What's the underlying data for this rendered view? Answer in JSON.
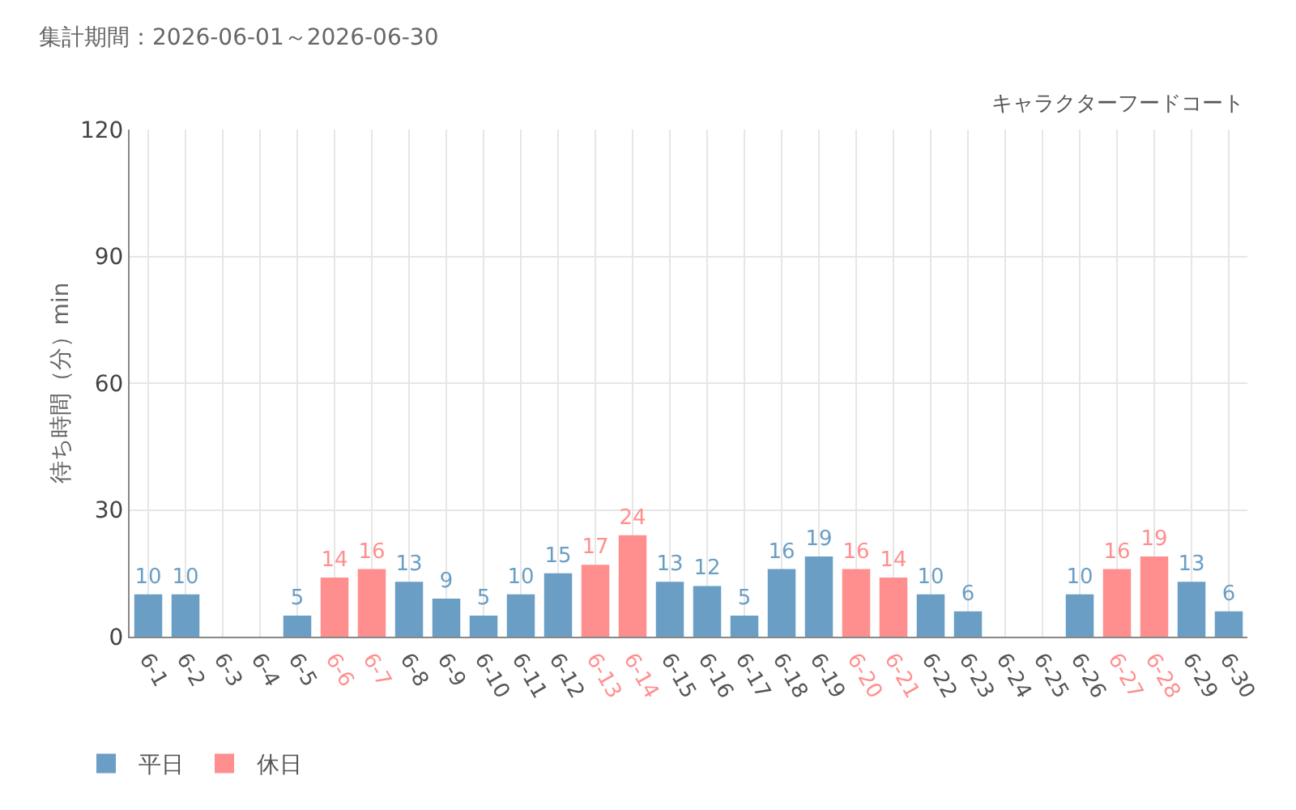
{
  "chart_data": {
    "type": "bar",
    "title": "集計期間：2026-06-01～2026-06-30",
    "subtitle": "キャラクターフードコート",
    "ylabel": "待ち時間（分）min",
    "categories": [
      "6-1",
      "6-2",
      "6-3",
      "6-4",
      "6-5",
      "6-6",
      "6-7",
      "6-8",
      "6-9",
      "6-10",
      "6-11",
      "6-12",
      "6-13",
      "6-14",
      "6-15",
      "6-16",
      "6-17",
      "6-18",
      "6-19",
      "6-20",
      "6-21",
      "6-22",
      "6-23",
      "6-24",
      "6-25",
      "6-26",
      "6-27",
      "6-28",
      "6-29",
      "6-30"
    ],
    "series": [
      {
        "name": "平日",
        "color": "#6a9ec5",
        "values": [
          10,
          10,
          null,
          null,
          5,
          null,
          null,
          13,
          9,
          5,
          10,
          15,
          null,
          null,
          13,
          12,
          5,
          16,
          19,
          null,
          null,
          10,
          6,
          null,
          null,
          10,
          null,
          null,
          13,
          6
        ]
      },
      {
        "name": "休日",
        "color": "#ff8f8f",
        "values": [
          null,
          null,
          null,
          null,
          null,
          14,
          16,
          null,
          null,
          null,
          null,
          null,
          17,
          24,
          null,
          null,
          null,
          null,
          null,
          16,
          14,
          null,
          null,
          null,
          null,
          null,
          16,
          19,
          null,
          null
        ]
      }
    ],
    "ylim": [
      0,
      120
    ],
    "yticks": [
      0,
      30,
      60,
      90,
      120
    ],
    "grid": true,
    "legend": "bottom left",
    "data_labels": true
  }
}
